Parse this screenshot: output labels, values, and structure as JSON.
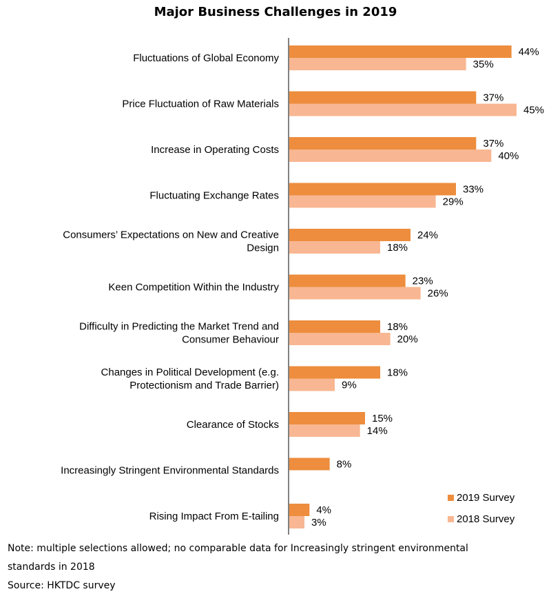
{
  "chart_data": {
    "type": "bar",
    "orientation": "horizontal",
    "title": "Major Business Challenges in 2019",
    "categories": [
      [
        "Fluctuations of Global Economy"
      ],
      [
        "Price Fluctuation of Raw Materials"
      ],
      [
        "Increase in Operating Costs"
      ],
      [
        "Fluctuating Exchange Rates"
      ],
      [
        "Consumers’ Expectations on New and Creative",
        "Design"
      ],
      [
        "Keen Competition Within the Industry"
      ],
      [
        "Difficulty in Predicting the Market Trend and",
        "Consumer Behaviour"
      ],
      [
        "Changes in Political Development (e.g.",
        "Protectionism and Trade Barrier)"
      ],
      [
        "Clearance of Stocks"
      ],
      [
        "Increasingly Stringent Environmental Standards"
      ],
      [
        "Rising Impact From E-tailing"
      ]
    ],
    "series": [
      {
        "name": "2019 Survey",
        "color": "#ED8D3D",
        "values": [
          44,
          37,
          37,
          33,
          24,
          23,
          18,
          18,
          15,
          8,
          4
        ],
        "labels": [
          "44%",
          "37%",
          "37%",
          "33%",
          "24%",
          "23%",
          "18%",
          "18%",
          "15%",
          "8%",
          "4%"
        ]
      },
      {
        "name": "2018 Survey",
        "color": "#F8B792",
        "values": [
          35,
          45,
          40,
          29,
          18,
          26,
          20,
          9,
          14,
          null,
          3
        ],
        "labels": [
          "35%",
          "45%",
          "40%",
          "29%",
          "18%",
          "26%",
          "20%",
          "9%",
          "14%",
          null,
          "3%"
        ]
      }
    ],
    "xlim": [
      0,
      45
    ],
    "legend_position": "bottom-right",
    "grid": false
  },
  "notes": {
    "line1": "Note: multiple selections allowed; no comparable data for Increasingly stringent environmental",
    "line2": "standards in 2018",
    "source": "Source: HKTDC survey"
  }
}
